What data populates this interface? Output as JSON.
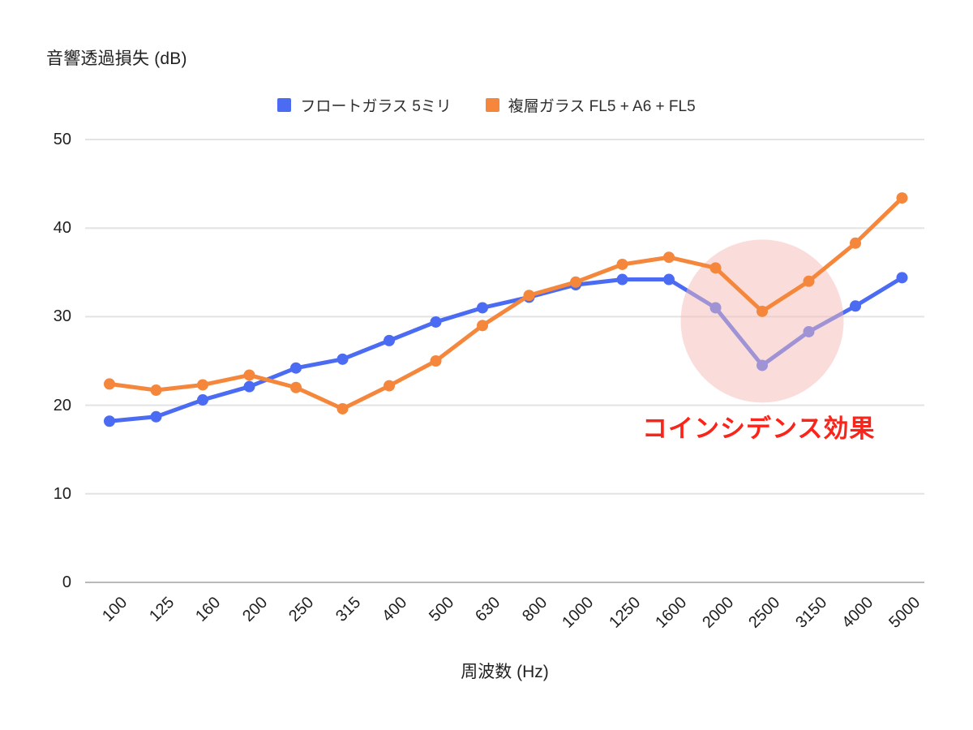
{
  "title": "音響透過損失 (dB)",
  "legend": {
    "items": [
      {
        "label": "フロートガラス 5ミリ",
        "color": "#4a6bf2"
      },
      {
        "label": "複層ガラス FL5 + A6 + FL5",
        "color": "#f5873c"
      }
    ]
  },
  "x_axis": {
    "title": "周波数 (Hz)",
    "tick_labels": [
      "100",
      "125",
      "160",
      "200",
      "250",
      "315",
      "400",
      "500",
      "630",
      "800",
      "1000",
      "1250",
      "1600",
      "2000",
      "2500",
      "3150",
      "4000",
      "5000"
    ]
  },
  "y_axis": {
    "tick_labels": [
      "0",
      "10",
      "20",
      "30",
      "40",
      "50"
    ]
  },
  "annotation": {
    "text": "コインシデンス効果",
    "color": "#fa251a"
  },
  "highlight_circle": {
    "color": "#f5bbb7",
    "opacity": 0.5
  },
  "chart_data": {
    "type": "line",
    "title": "音響透過損失 (dB)",
    "xlabel": "周波数 (Hz)",
    "ylabel": "音響透過損失 (dB)",
    "categories": [
      100,
      125,
      160,
      200,
      250,
      315,
      400,
      500,
      630,
      800,
      1000,
      1250,
      1600,
      2000,
      2500,
      3150,
      4000,
      5000
    ],
    "series": [
      {
        "name": "フロートガラス 5ミリ",
        "color": "#4a6bf2",
        "values": [
          18.2,
          18.7,
          20.6,
          22.1,
          24.2,
          25.2,
          27.3,
          29.4,
          31.0,
          32.2,
          33.6,
          34.2,
          34.2,
          31.0,
          24.5,
          28.3,
          31.2,
          34.4
        ]
      },
      {
        "name": "複層ガラス FL5 + A6 + FL5",
        "color": "#f5873c",
        "values": [
          22.4,
          21.7,
          22.3,
          23.4,
          22.0,
          19.6,
          22.2,
          25.0,
          29.0,
          32.4,
          33.9,
          35.9,
          36.7,
          35.5,
          30.6,
          34.0,
          38.3,
          43.4
        ]
      }
    ],
    "ylim": [
      0,
      50
    ],
    "yticks": [
      0,
      10,
      20,
      30,
      40,
      50
    ],
    "grid": true,
    "legend_position": "top",
    "highlight": {
      "shape": "circle",
      "center_category": 2500,
      "center_value": 29.5,
      "radius_db": 9.2,
      "color": "#f5bbb7",
      "opacity": 0.5,
      "label": "コインシデンス効果"
    },
    "annotations": [
      {
        "text": "コインシデンス効果",
        "color": "#fa251a",
        "position": "below highlight circle, right side"
      }
    ]
  }
}
